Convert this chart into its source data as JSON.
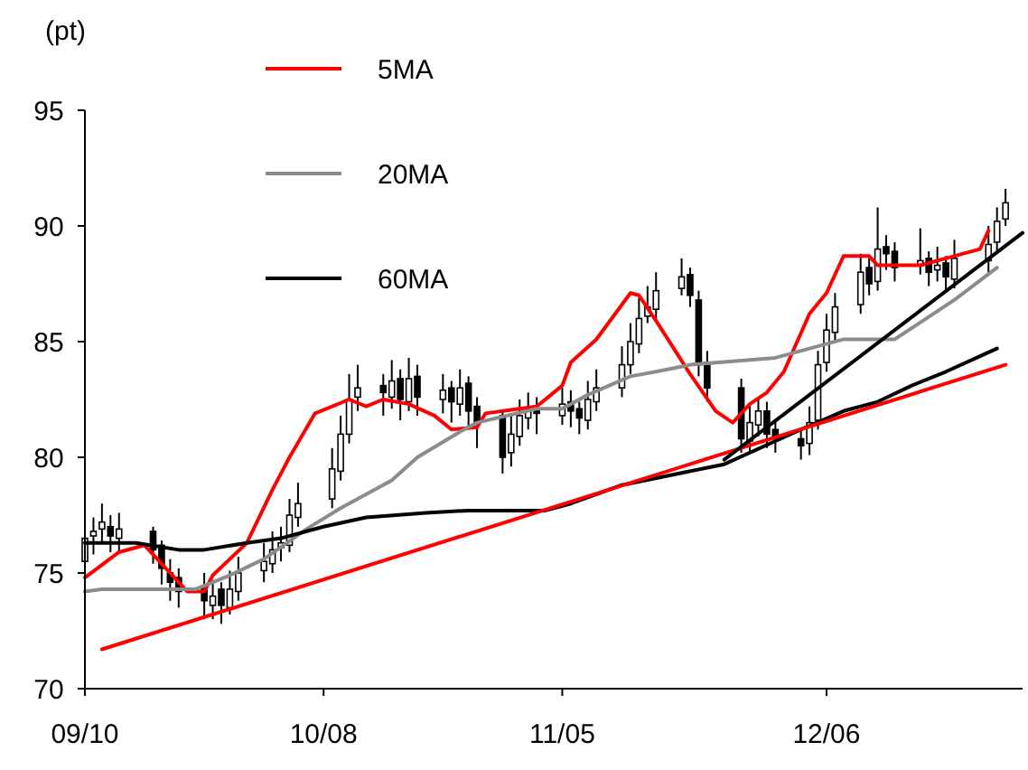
{
  "chart_data": {
    "type": "candlestick",
    "ylabel": "(pt)",
    "xlim": [
      "--09-10",
      "--12-29"
    ],
    "xticks": [
      {
        "value": "--09-10",
        "label": "09/10"
      },
      {
        "value": "--10-08",
        "label": "10/08"
      },
      {
        "value": "--11-05",
        "label": "11/05"
      },
      {
        "value": "--12-06",
        "label": "12/06"
      }
    ],
    "ylim": [
      70,
      95
    ],
    "yticks": [
      70,
      75,
      80,
      85,
      90,
      95
    ],
    "grid": false,
    "legend": "top left",
    "x": [
      "--09-10",
      "--09-11",
      "--09-12",
      "--09-13",
      "--09-14",
      "--09-18",
      "--09-19",
      "--09-20",
      "--09-21",
      "--09-24",
      "--09-25",
      "--09-26",
      "--09-27",
      "--09-28",
      "--10-01",
      "--10-02",
      "--10-03",
      "--10-04",
      "--10-05",
      "--10-09",
      "--10-10",
      "--10-11",
      "--10-12",
      "--10-15",
      "--10-16",
      "--10-17",
      "--10-18",
      "--10-19",
      "--10-22",
      "--10-23",
      "--10-24",
      "--10-25",
      "--10-26",
      "--10-29",
      "--10-30",
      "--10-31",
      "--11-01",
      "--11-02",
      "--11-05",
      "--11-06",
      "--11-07",
      "--11-08",
      "--11-09",
      "--11-12",
      "--11-13",
      "--11-14",
      "--11-15",
      "--11-16",
      "--11-19",
      "--11-20",
      "--11-21",
      "--11-22",
      "--11-26",
      "--11-27",
      "--11-28",
      "--11-29",
      "--11-30",
      "--12-03",
      "--12-04",
      "--12-05",
      "--12-06",
      "--12-07",
      "--12-10",
      "--12-11",
      "--12-12",
      "--12-13",
      "--12-14",
      "--12-17",
      "--12-18",
      "--12-19",
      "--12-20",
      "--12-21",
      "--12-25",
      "--12-26",
      "--12-27"
    ],
    "ohlc": [
      [
        75.5,
        77.3,
        74.8,
        76.5
      ],
      [
        76.6,
        77.4,
        75.8,
        76.8
      ],
      [
        76.9,
        78.0,
        76.3,
        77.2
      ],
      [
        77.0,
        77.5,
        75.9,
        76.6
      ],
      [
        76.5,
        77.6,
        75.9,
        76.9
      ],
      [
        76.8,
        77.0,
        75.4,
        76.0
      ],
      [
        76.2,
        76.4,
        74.5,
        75.2
      ],
      [
        75.0,
        75.6,
        73.8,
        74.6
      ],
      [
        74.8,
        75.2,
        73.5,
        74.2
      ],
      [
        74.4,
        75.0,
        73.0,
        73.8
      ],
      [
        73.6,
        74.7,
        73.0,
        74.0
      ],
      [
        74.3,
        74.6,
        72.8,
        73.6
      ],
      [
        73.5,
        75.1,
        73.2,
        74.3
      ],
      [
        74.2,
        75.7,
        73.8,
        75.0
      ],
      [
        75.1,
        76.3,
        74.6,
        75.5
      ],
      [
        75.4,
        76.8,
        75.0,
        76.0
      ],
      [
        76.1,
        77.0,
        75.5,
        76.3
      ],
      [
        76.2,
        78.2,
        75.9,
        77.5
      ],
      [
        77.4,
        78.9,
        77.0,
        78.0
      ],
      [
        78.2,
        80.4,
        77.8,
        79.5
      ],
      [
        79.4,
        81.8,
        79.0,
        81.0
      ],
      [
        81.0,
        83.6,
        80.6,
        82.5
      ],
      [
        82.6,
        84.0,
        82.0,
        83.0
      ],
      [
        83.1,
        83.6,
        81.8,
        82.8
      ],
      [
        82.6,
        84.2,
        82.1,
        83.3
      ],
      [
        83.4,
        83.8,
        81.6,
        82.5
      ],
      [
        82.4,
        84.3,
        82.0,
        83.4
      ],
      [
        83.5,
        84.0,
        81.8,
        82.6
      ],
      [
        82.5,
        83.6,
        81.9,
        82.9
      ],
      [
        83.0,
        83.3,
        81.5,
        82.4
      ],
      [
        82.3,
        83.8,
        81.8,
        83.0
      ],
      [
        83.2,
        83.5,
        81.2,
        82.0
      ],
      [
        82.2,
        82.6,
        80.4,
        81.5
      ],
      [
        81.8,
        82.0,
        79.3,
        80.0
      ],
      [
        80.2,
        81.8,
        79.6,
        81.0
      ],
      [
        80.9,
        82.5,
        80.5,
        81.8
      ],
      [
        81.7,
        82.8,
        81.2,
        82.0
      ],
      [
        82.1,
        82.6,
        81.0,
        81.9
      ],
      [
        81.8,
        83.0,
        81.4,
        82.3
      ],
      [
        82.4,
        82.9,
        81.3,
        82.0
      ],
      [
        82.1,
        82.4,
        81.0,
        81.7
      ],
      [
        81.6,
        83.3,
        81.2,
        82.5
      ],
      [
        82.4,
        83.8,
        82.0,
        83.0
      ],
      [
        83.0,
        84.8,
        82.6,
        84.0
      ],
      [
        84.0,
        85.8,
        83.6,
        85.0
      ],
      [
        84.9,
        86.9,
        84.5,
        86.0
      ],
      [
        86.1,
        87.4,
        85.8,
        86.5
      ],
      [
        86.4,
        88.0,
        86.0,
        87.2
      ],
      [
        87.3,
        88.6,
        87.0,
        87.8
      ],
      [
        87.9,
        88.2,
        86.5,
        87.0
      ],
      [
        86.8,
        87.2,
        83.5,
        84.0
      ],
      [
        84.1,
        84.6,
        82.4,
        83.0
      ],
      [
        83.0,
        83.4,
        80.2,
        80.8
      ],
      [
        80.7,
        82.3,
        80.2,
        81.5
      ],
      [
        81.4,
        82.6,
        80.9,
        82.0
      ],
      [
        82.0,
        82.4,
        80.4,
        81.0
      ],
      [
        81.2,
        81.6,
        80.2,
        80.8
      ],
      [
        80.8,
        81.2,
        79.9,
        80.5
      ],
      [
        80.6,
        82.2,
        80.1,
        81.5
      ],
      [
        81.6,
        84.6,
        81.2,
        84.0
      ],
      [
        84.1,
        86.2,
        83.7,
        85.5
      ],
      [
        85.4,
        87.1,
        85.0,
        86.5
      ],
      [
        86.6,
        88.8,
        86.2,
        88.0
      ],
      [
        88.2,
        88.6,
        87.0,
        87.5
      ],
      [
        87.6,
        90.8,
        87.2,
        89.0
      ],
      [
        89.1,
        89.6,
        88.1,
        88.8
      ],
      [
        88.9,
        89.3,
        87.6,
        88.2
      ],
      [
        88.3,
        89.9,
        87.9,
        88.5
      ],
      [
        88.6,
        88.9,
        87.4,
        88.0
      ],
      [
        88.1,
        89.1,
        87.6,
        88.3
      ],
      [
        88.4,
        88.7,
        87.2,
        87.8
      ],
      [
        87.7,
        89.4,
        87.3,
        88.6
      ],
      [
        88.5,
        90.0,
        88.0,
        89.2
      ],
      [
        89.3,
        90.8,
        88.9,
        90.2
      ],
      [
        90.3,
        91.6,
        90.0,
        91.0
      ]
    ],
    "series": [
      {
        "name": "5MA",
        "type": "line",
        "color": "#ff0000",
        "x": [
          "--09-10",
          "--09-14",
          "--09-17",
          "--09-22",
          "--09-24",
          "--09-25",
          "--09-27",
          "--09-29",
          "--10-02",
          "--10-04",
          "--10-07",
          "--10-11",
          "--10-13",
          "--10-15",
          "--10-18",
          "--10-21",
          "--10-23",
          "--10-26",
          "--10-27",
          "--10-31",
          "--11-02",
          "--11-05",
          "--11-06",
          "--11-09",
          "--11-13",
          "--11-14",
          "--11-16",
          "--11-20",
          "--11-23",
          "--11-25",
          "--11-27",
          "--11-29",
          "--12-01",
          "--12-04",
          "--12-06",
          "--12-08",
          "--12-11",
          "--12-12",
          "--12-17",
          "--12-20",
          "--12-24",
          "--12-25"
        ],
        "values": [
          74.8,
          75.9,
          76.2,
          74.2,
          74.2,
          74.9,
          75.6,
          76.3,
          78.6,
          80.0,
          81.9,
          82.5,
          82.2,
          82.5,
          82.3,
          81.8,
          81.2,
          81.3,
          81.9,
          82.1,
          82.2,
          83.1,
          84.1,
          85.1,
          87.1,
          87.0,
          85.9,
          83.6,
          82.0,
          81.5,
          82.3,
          82.8,
          83.7,
          86.2,
          87.1,
          88.7,
          88.7,
          88.3,
          88.3,
          88.6,
          89.0,
          89.8
        ]
      },
      {
        "name": "20MA",
        "type": "line",
        "color": "#8c8c8c",
        "x": [
          "--09-10",
          "--09-12",
          "--09-21",
          "--09-23",
          "--09-27",
          "--10-01",
          "--10-06",
          "--10-10",
          "--10-12",
          "--10-16",
          "--10-19",
          "--10-24",
          "--10-26",
          "--11-02",
          "--11-05",
          "--11-08",
          "--11-13",
          "--11-16",
          "--11-20",
          "--11-30",
          "--12-04",
          "--12-08",
          "--12-14",
          "--12-21",
          "--12-26"
        ],
        "values": [
          74.2,
          74.3,
          74.3,
          74.3,
          74.9,
          75.6,
          76.9,
          77.8,
          78.2,
          79.0,
          80.0,
          81.1,
          81.5,
          82.1,
          82.1,
          82.7,
          83.5,
          83.7,
          84.0,
          84.3,
          84.7,
          85.1,
          85.1,
          86.8,
          88.2
        ]
      },
      {
        "name": "60MA",
        "type": "line",
        "color": "#000000",
        "x": [
          "--09-10",
          "--09-16",
          "--09-21",
          "--09-24",
          "--09-29",
          "--10-03",
          "--10-08",
          "--10-13",
          "--10-20",
          "--10-25",
          "--11-03",
          "--11-06",
          "--11-12",
          "--11-24",
          "--12-03",
          "--12-08",
          "--12-12",
          "--12-16",
          "--12-20",
          "--12-26"
        ],
        "values": [
          76.3,
          76.3,
          76.0,
          76.0,
          76.3,
          76.5,
          77.0,
          77.4,
          77.6,
          77.7,
          77.7,
          78.0,
          78.8,
          79.7,
          81.2,
          82.0,
          82.4,
          83.1,
          83.7,
          84.7
        ]
      },
      {
        "type": "line",
        "color": "#ff0000",
        "x": [
          "--09-12",
          "--12-27"
        ],
        "values": [
          71.7,
          84.0
        ]
      },
      {
        "type": "line",
        "color": "#000000",
        "x": [
          "--11-24",
          "--12-29"
        ],
        "values": [
          79.9,
          89.7
        ]
      }
    ]
  }
}
